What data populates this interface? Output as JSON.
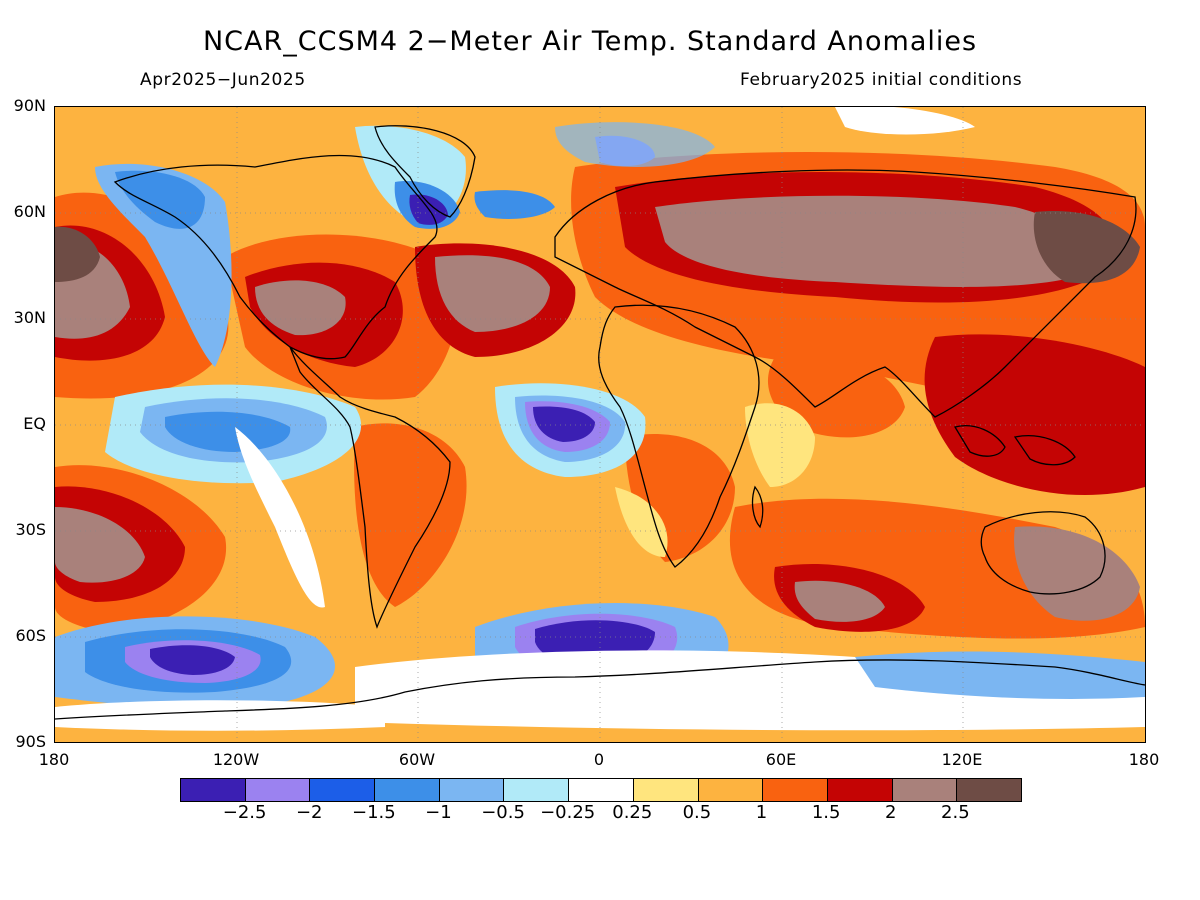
{
  "header": {
    "title": "NCAR_CCSM4 2−Meter Air Temp. Standard Anomalies",
    "period": "Apr2025−Jun2025",
    "initial_conditions": "February2025 initial conditions"
  },
  "axes": {
    "lat_labels": [
      "90N",
      "60N",
      "30N",
      "EQ",
      "30S",
      "60S",
      "90S"
    ],
    "lon_labels": [
      "180",
      "120W",
      "60W",
      "0",
      "60E",
      "120E",
      "180"
    ]
  },
  "legend": {
    "colors": [
      "#3b1fb3",
      "#9b82f0",
      "#1c5ee8",
      "#3d8fe8",
      "#7bb6f2",
      "#b1eaf8",
      "#ffffff",
      "#ffe57e",
      "#fdb340",
      "#f96210",
      "#c40404",
      "#a9817b",
      "#6e4c45"
    ],
    "labels": [
      "−2.5",
      "−2",
      "−1.5",
      "−1",
      "−0.5",
      "−0.25",
      "0.25",
      "0.5",
      "1",
      "1.5",
      "2",
      "2.5"
    ]
  }
}
